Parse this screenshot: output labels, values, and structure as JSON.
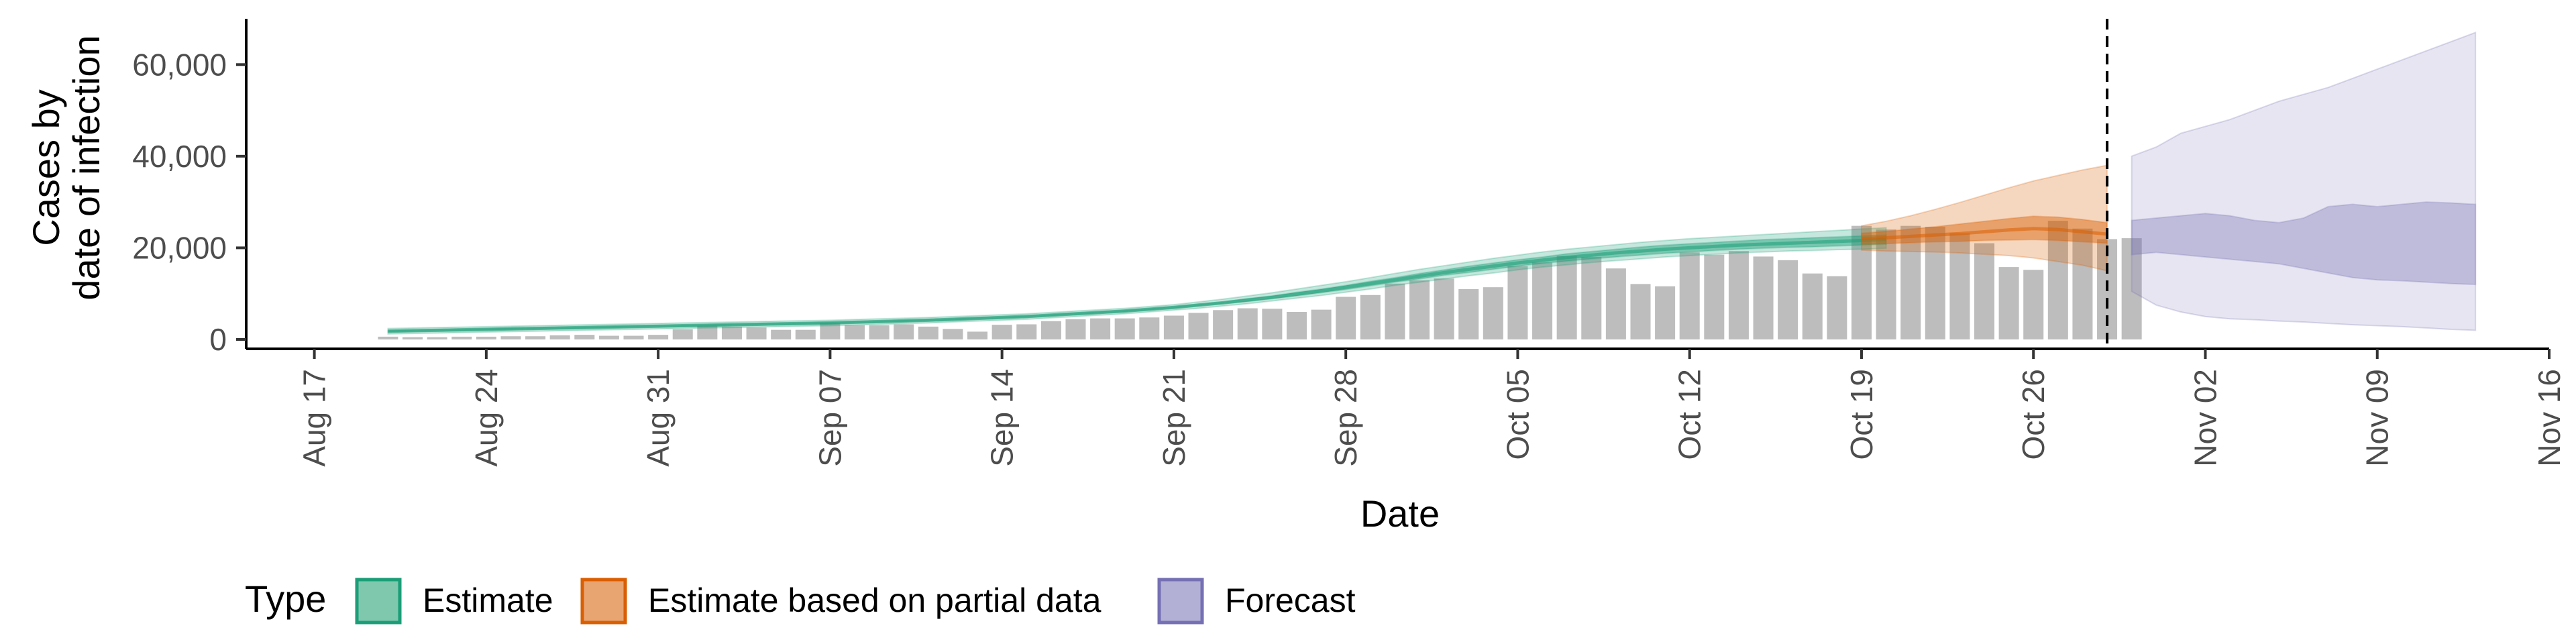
{
  "chart_data": {
    "type": "bar",
    "title": "",
    "xlabel": "Date",
    "ylabel": [
      "Cases by",
      "date of infection"
    ],
    "ylim": [
      0,
      70000
    ],
    "xlim": [
      "2020-08-16",
      "2020-11-16"
    ],
    "x_ticks": [
      {
        "date": "2020-08-17",
        "label": "Aug 17"
      },
      {
        "date": "2020-08-24",
        "label": "Aug 24"
      },
      {
        "date": "2020-08-31",
        "label": "Aug 31"
      },
      {
        "date": "2020-09-07",
        "label": "Sep 07"
      },
      {
        "date": "2020-09-14",
        "label": "Sep 14"
      },
      {
        "date": "2020-09-21",
        "label": "Sep 21"
      },
      {
        "date": "2020-09-28",
        "label": "Sep 28"
      },
      {
        "date": "2020-10-05",
        "label": "Oct 05"
      },
      {
        "date": "2020-10-12",
        "label": "Oct 12"
      },
      {
        "date": "2020-10-19",
        "label": "Oct 19"
      },
      {
        "date": "2020-10-26",
        "label": "Oct 26"
      },
      {
        "date": "2020-11-02",
        "label": "Nov 02"
      },
      {
        "date": "2020-11-09",
        "label": "Nov 09"
      },
      {
        "date": "2020-11-16",
        "label": "Nov 16"
      }
    ],
    "y_ticks": [
      {
        "value": 0,
        "label": "0"
      },
      {
        "value": 20000,
        "label": "20,000"
      },
      {
        "value": 40000,
        "label": "40,000"
      },
      {
        "value": 60000,
        "label": "60,000"
      }
    ],
    "forecast_start": "2020-10-29",
    "grid": false,
    "legend": {
      "title": "Type",
      "position": "bottom",
      "items": [
        {
          "label": "Estimate",
          "fill": "#7fc8ae",
          "stroke": "#1b9e77"
        },
        {
          "label": "Estimate based on partial data",
          "fill": "#e8a572",
          "stroke": "#d95f02"
        },
        {
          "label": "Forecast",
          "fill": "#b3b0d6",
          "stroke": "#7570b3"
        }
      ]
    },
    "colors": {
      "bars": "#bdbdbd",
      "estimate": "#1b9e77",
      "partial": "#d95f02",
      "forecast": "#7570b3"
    },
    "bars": {
      "start_date": "2020-08-20",
      "values": [
        600,
        500,
        500,
        600,
        600,
        700,
        700,
        900,
        1000,
        800,
        800,
        1000,
        2200,
        3000,
        2800,
        2600,
        2100,
        2100,
        3600,
        3100,
        3100,
        3300,
        2800,
        2300,
        1700,
        3200,
        3300,
        4000,
        4400,
        4600,
        4600,
        4800,
        5200,
        5800,
        6400,
        6800,
        6700,
        6000,
        6500,
        9300,
        9700,
        12200,
        12900,
        13300,
        11000,
        11400,
        16000,
        16800,
        18200,
        18000,
        15500,
        12100,
        11600,
        19000,
        18500,
        19300,
        18100,
        17300,
        14400,
        13800,
        24800,
        24000,
        24800,
        24600,
        23200,
        21000,
        15800,
        15200,
        25900,
        24200,
        21900,
        22100
      ]
    },
    "series": [
      {
        "name": "Estimate",
        "start_date": "2020-08-20",
        "median": [
          1800,
          1900,
          2000,
          2100,
          2200,
          2300,
          2400,
          2500,
          2600,
          2700,
          2800,
          2900,
          3000,
          3100,
          3200,
          3300,
          3400,
          3500,
          3600,
          3750,
          3900,
          4050,
          4200,
          4400,
          4600,
          4800,
          5000,
          5300,
          5600,
          5900,
          6200,
          6600,
          7000,
          7500,
          8000,
          8600,
          9200,
          9900,
          10600,
          11400,
          12200,
          13000,
          13800,
          14600,
          15300,
          16000,
          16700,
          17300,
          17900,
          18400,
          18900,
          19300,
          19700,
          20000,
          20300,
          20600,
          20800,
          21000,
          21200,
          21400,
          21600,
          21800
        ],
        "lower50": [
          1600,
          1700,
          1800,
          1900,
          2000,
          2100,
          2200,
          2300,
          2400,
          2500,
          2600,
          2700,
          2800,
          2900,
          3000,
          3100,
          3200,
          3300,
          3400,
          3550,
          3700,
          3850,
          4000,
          4200,
          4400,
          4600,
          4800,
          5100,
          5400,
          5700,
          6000,
          6400,
          6800,
          7300,
          7800,
          8300,
          8900,
          9500,
          10200,
          10900,
          11700,
          12500,
          13200,
          14000,
          14600,
          15300,
          16000,
          16600,
          17100,
          17600,
          18000,
          18400,
          18800,
          19100,
          19400,
          19700,
          19900,
          20100,
          20200,
          20400,
          20600,
          20800
        ],
        "upper50": [
          2000,
          2100,
          2200,
          2300,
          2400,
          2500,
          2600,
          2700,
          2800,
          2900,
          3000,
          3100,
          3200,
          3300,
          3400,
          3500,
          3600,
          3700,
          3800,
          3950,
          4100,
          4250,
          4400,
          4600,
          4800,
          5000,
          5200,
          5500,
          5800,
          6100,
          6400,
          6800,
          7200,
          7700,
          8200,
          8900,
          9500,
          10300,
          11000,
          11800,
          12700,
          13500,
          14400,
          15200,
          16000,
          16700,
          17400,
          18000,
          18700,
          19200,
          19700,
          20200,
          20600,
          20900,
          21200,
          21500,
          21800,
          22000,
          22200,
          22400,
          22600,
          22800
        ],
        "lower90": [
          1200,
          1300,
          1400,
          1500,
          1600,
          1700,
          1800,
          1900,
          2000,
          2100,
          2200,
          2300,
          2400,
          2500,
          2600,
          2700,
          2800,
          2900,
          3000,
          3150,
          3300,
          3450,
          3600,
          3800,
          4000,
          4200,
          4400,
          4700,
          5000,
          5300,
          5600,
          6000,
          6400,
          6800,
          7300,
          7800,
          8400,
          9000,
          9600,
          10300,
          11000,
          11800,
          12500,
          13200,
          13900,
          14500,
          15200,
          15800,
          16300,
          16800,
          17200,
          17600,
          18000,
          18300,
          18600,
          18900,
          19100,
          19300,
          19400,
          19600,
          19700,
          19900
        ],
        "upper90": [
          2400,
          2500,
          2600,
          2700,
          2800,
          2900,
          3000,
          3100,
          3200,
          3300,
          3400,
          3500,
          3600,
          3700,
          3800,
          3900,
          4000,
          4100,
          4200,
          4350,
          4500,
          4650,
          4800,
          5000,
          5200,
          5400,
          5600,
          5900,
          6200,
          6500,
          6800,
          7200,
          7600,
          8200,
          8800,
          9500,
          10200,
          11000,
          11800,
          12600,
          13500,
          14400,
          15300,
          16100,
          16900,
          17700,
          18400,
          19100,
          19700,
          20200,
          20700,
          21200,
          21600,
          22000,
          22300,
          22600,
          22900,
          23200,
          23500,
          23800,
          24100,
          24400
        ]
      },
      {
        "name": "Estimate based on partial data",
        "start_date": "2020-10-19",
        "median": [
          22000,
          22200,
          22500,
          22800,
          23100,
          23500,
          23900,
          24200,
          24000,
          23500,
          23000
        ],
        "lower50": [
          20800,
          20900,
          21100,
          21300,
          21400,
          21600,
          21700,
          21800,
          21600,
          21300,
          21000
        ],
        "upper50": [
          23200,
          23600,
          24100,
          24600,
          25200,
          25800,
          26400,
          26900,
          26700,
          26200,
          25500
        ],
        "lower90": [
          19500,
          19300,
          19200,
          19100,
          18900,
          18600,
          18300,
          17800,
          17000,
          16200,
          15000
        ],
        "upper90": [
          24800,
          25800,
          27000,
          28400,
          29900,
          31500,
          33100,
          34600,
          35800,
          37000,
          38000
        ]
      },
      {
        "name": "Forecast",
        "start_date": "2020-10-30",
        "median": [
          22000,
          22500,
          22000,
          21500,
          21200,
          20800,
          20500,
          20000,
          19500,
          19000,
          18500,
          18200,
          17800,
          17400,
          17000
        ],
        "lower50": [
          18500,
          19000,
          18500,
          18000,
          17500,
          17000,
          16500,
          15500,
          14500,
          13500,
          13000,
          12800,
          12500,
          12200,
          12000
        ],
        "upper50": [
          26000,
          26500,
          27000,
          27500,
          27000,
          26000,
          25500,
          26500,
          29000,
          29500,
          29000,
          29500,
          30000,
          29800,
          29500
        ],
        "lower90": [
          10500,
          7500,
          6000,
          5000,
          4500,
          4300,
          4000,
          3800,
          3500,
          3200,
          3000,
          2800,
          2500,
          2200,
          2000
        ],
        "upper90": [
          40000,
          42000,
          45000,
          46500,
          48000,
          50000,
          52000,
          53500,
          55000,
          57000,
          59000,
          61000,
          63000,
          65000,
          67000
        ]
      }
    ]
  }
}
